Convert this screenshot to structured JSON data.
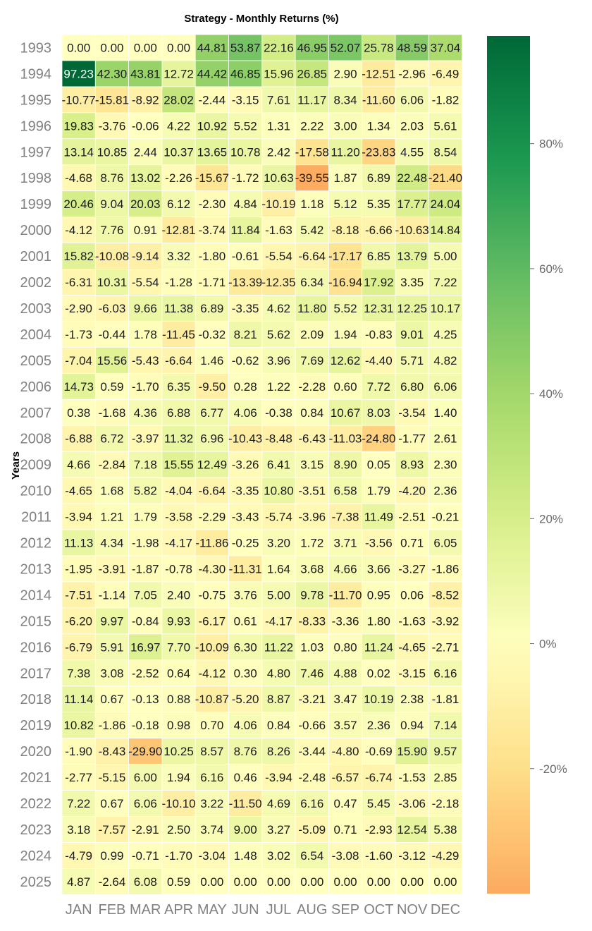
{
  "chart_data": {
    "type": "heatmap",
    "title": "Strategy - Monthly Returns (%)",
    "ylabel": "Years",
    "xlabel": "",
    "months": [
      "JAN",
      "FEB",
      "MAR",
      "APR",
      "MAY",
      "JUN",
      "JUL",
      "AUG",
      "SEP",
      "OCT",
      "NOV",
      "DEC"
    ],
    "years": [
      "1993",
      "1994",
      "1995",
      "1996",
      "1997",
      "1998",
      "1999",
      "2000",
      "2001",
      "2002",
      "2003",
      "2004",
      "2005",
      "2006",
      "2007",
      "2008",
      "2009",
      "2010",
      "2011",
      "2012",
      "2013",
      "2014",
      "2015",
      "2016",
      "2017",
      "2018",
      "2019",
      "2020",
      "2021",
      "2022",
      "2023",
      "2024",
      "2025"
    ],
    "values": [
      [
        0.0,
        0.0,
        0.0,
        0.0,
        44.81,
        53.87,
        22.16,
        46.95,
        52.07,
        25.78,
        48.59,
        37.04
      ],
      [
        97.23,
        42.3,
        43.81,
        12.72,
        44.42,
        46.85,
        15.96,
        26.85,
        2.9,
        -12.51,
        -2.96,
        -6.49
      ],
      [
        -10.77,
        -15.81,
        -8.92,
        28.02,
        -2.44,
        -3.15,
        7.61,
        11.17,
        8.34,
        -11.6,
        6.06,
        -1.82
      ],
      [
        19.83,
        -3.76,
        -0.06,
        4.22,
        10.92,
        5.52,
        1.31,
        2.22,
        3.0,
        1.34,
        2.03,
        5.61
      ],
      [
        13.14,
        10.85,
        2.44,
        10.37,
        13.65,
        10.78,
        2.42,
        -17.58,
        11.2,
        -23.83,
        4.55,
        8.54
      ],
      [
        -4.68,
        8.76,
        13.02,
        -2.26,
        -15.67,
        -1.72,
        10.63,
        -39.55,
        1.87,
        6.89,
        22.48,
        -21.4
      ],
      [
        20.46,
        9.04,
        20.03,
        6.12,
        -2.3,
        4.84,
        -10.19,
        1.18,
        5.12,
        5.35,
        17.77,
        24.04
      ],
      [
        -4.12,
        7.76,
        0.91,
        -12.81,
        -3.74,
        11.84,
        -1.63,
        5.42,
        -8.18,
        -6.66,
        -10.63,
        14.84
      ],
      [
        15.82,
        -10.08,
        -9.14,
        3.32,
        -1.8,
        -0.61,
        -5.54,
        -6.64,
        -17.17,
        6.85,
        13.79,
        5.0
      ],
      [
        -6.31,
        10.31,
        -5.54,
        -1.28,
        -1.71,
        -13.39,
        -12.35,
        6.34,
        -16.94,
        17.92,
        3.35,
        7.22
      ],
      [
        -2.9,
        -6.03,
        9.66,
        11.38,
        6.89,
        -3.35,
        4.62,
        11.8,
        5.52,
        12.31,
        12.25,
        10.17
      ],
      [
        -1.73,
        -0.44,
        1.78,
        -11.45,
        -0.32,
        8.21,
        5.62,
        2.09,
        1.94,
        -0.83,
        9.01,
        4.25
      ],
      [
        -7.04,
        15.56,
        -5.43,
        -6.64,
        1.46,
        -0.62,
        3.96,
        7.69,
        12.62,
        -4.4,
        5.71,
        4.82
      ],
      [
        14.73,
        0.59,
        -1.7,
        6.35,
        -9.5,
        0.28,
        1.22,
        -2.28,
        0.6,
        7.72,
        6.8,
        6.06
      ],
      [
        0.38,
        -1.68,
        4.36,
        6.88,
        6.77,
        4.06,
        -0.38,
        0.84,
        10.67,
        8.03,
        -3.54,
        1.4
      ],
      [
        -6.88,
        6.72,
        -3.97,
        11.32,
        6.96,
        -10.43,
        -8.48,
        -6.43,
        -11.03,
        -24.8,
        -1.77,
        2.61
      ],
      [
        4.66,
        -2.84,
        7.18,
        15.55,
        12.49,
        -3.26,
        6.41,
        3.15,
        8.9,
        0.05,
        8.93,
        2.3
      ],
      [
        -4.65,
        1.68,
        5.82,
        -4.04,
        -6.64,
        -3.35,
        10.8,
        -3.51,
        6.58,
        1.79,
        -4.2,
        2.36
      ],
      [
        -3.94,
        1.21,
        1.79,
        -3.58,
        -2.29,
        -3.43,
        -5.74,
        -3.96,
        -7.38,
        11.49,
        -2.51,
        -0.21
      ],
      [
        11.13,
        4.34,
        -1.98,
        -4.17,
        -11.86,
        -0.25,
        3.2,
        1.72,
        3.71,
        -3.56,
        0.71,
        6.05
      ],
      [
        -1.95,
        -3.91,
        -1.87,
        -0.78,
        -4.3,
        -11.31,
        1.64,
        3.68,
        4.66,
        3.66,
        -3.27,
        -1.86
      ],
      [
        -7.51,
        -1.14,
        7.05,
        2.4,
        -0.75,
        3.76,
        5.0,
        9.78,
        -11.7,
        0.95,
        0.06,
        -8.52
      ],
      [
        -6.2,
        9.97,
        -0.84,
        9.93,
        -6.17,
        0.61,
        -4.17,
        -8.33,
        -3.36,
        1.8,
        -1.63,
        -3.92
      ],
      [
        -6.79,
        5.91,
        16.97,
        7.7,
        -10.09,
        6.3,
        11.22,
        1.03,
        0.8,
        11.24,
        -4.65,
        -2.71
      ],
      [
        7.38,
        3.08,
        -2.52,
        0.64,
        -4.12,
        0.3,
        4.8,
        7.46,
        4.88,
        0.02,
        -3.15,
        6.16
      ],
      [
        11.14,
        0.67,
        -0.13,
        0.88,
        -10.87,
        -5.2,
        8.87,
        -3.21,
        3.47,
        10.19,
        2.38,
        -1.81
      ],
      [
        10.82,
        -1.86,
        -0.18,
        0.98,
        0.7,
        4.06,
        0.84,
        -0.66,
        3.57,
        2.36,
        0.94,
        7.14
      ],
      [
        -1.9,
        -8.43,
        -29.9,
        10.25,
        8.57,
        8.76,
        8.26,
        -3.44,
        -4.8,
        -0.69,
        15.9,
        9.57
      ],
      [
        -2.77,
        -5.15,
        6.0,
        1.94,
        6.16,
        0.46,
        -3.94,
        -2.48,
        -6.57,
        -6.74,
        -1.53,
        2.85
      ],
      [
        7.22,
        0.67,
        6.06,
        -10.1,
        3.22,
        -11.5,
        4.69,
        6.16,
        0.47,
        5.45,
        -3.06,
        -2.18
      ],
      [
        3.18,
        -7.57,
        -2.91,
        2.5,
        3.74,
        9.0,
        3.27,
        -5.09,
        0.71,
        -2.93,
        12.54,
        5.38
      ],
      [
        -4.79,
        0.99,
        -0.71,
        -1.7,
        -3.04,
        1.48,
        3.02,
        6.54,
        -3.08,
        -1.6,
        -3.12,
        -4.29
      ],
      [
        4.87,
        -2.64,
        6.08,
        0.59,
        0.0,
        0.0,
        0.0,
        0.0,
        0.0,
        0.0,
        0.0,
        0.0
      ]
    ],
    "colorbar": {
      "range": [
        -40,
        97.23
      ],
      "ticks": [
        -20,
        0,
        20,
        40,
        60,
        80
      ],
      "tick_labels": [
        "-20%",
        "0%",
        "20%",
        "40%",
        "60%",
        "80%"
      ],
      "colormap": "RdYlGn (center 0)"
    },
    "grid": false,
    "legend": "colorbar-right"
  },
  "colors": {
    "cell_border": "#ffffff",
    "tick_text": "#808080",
    "cell_text": "#1a1a1a"
  }
}
